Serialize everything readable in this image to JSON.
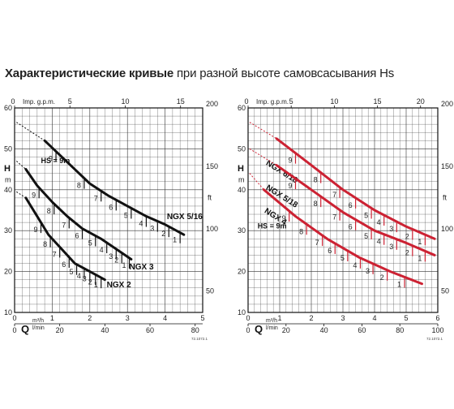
{
  "title": {
    "bold": "Характеристические кривые",
    "rest": " при разной высоте самовсасывания Hs"
  },
  "colors": {
    "left_curves": "#111111",
    "right_curves": "#cc2233",
    "grid": "#222222"
  },
  "chart_data": [
    {
      "type": "line",
      "id": "left",
      "curve_color": "#111111",
      "top_axis_label": "Imp. g.p.m.",
      "top_ticks": [
        "0",
        "5",
        "10",
        "15"
      ],
      "top_range": [
        0,
        17
      ],
      "right_unit": "ft",
      "right_ticks": [
        "200",
        "150",
        "100",
        "50"
      ],
      "left_axis_label": "H",
      "left_axis_unit": "m",
      "left_ticks": [
        "60",
        "50",
        "40",
        "30",
        "20",
        "10"
      ],
      "ylim": [
        10,
        60
      ],
      "bottom_q_label": "Q",
      "q_unit_1": "m³/h",
      "q_unit_2": "l/min",
      "m3h_ticks": [
        "0",
        "1",
        "2",
        "3",
        "4",
        "5"
      ],
      "m3h_range": [
        0,
        5
      ],
      "lmin_ticks": [
        "0",
        "20",
        "40",
        "60",
        "80"
      ],
      "lmin_range": [
        0,
        83.333
      ],
      "code": "72.1072.1",
      "series": [
        {
          "name": "NGX 5/16",
          "label_at": [
            4.05,
            32.8
          ],
          "dashed": [
            [
              0.05,
              56.5
            ],
            [
              0.8,
              52
            ]
          ],
          "points": [
            [
              0.8,
              52
            ],
            [
              1.2,
              48.5
            ],
            [
              1.6,
              45
            ],
            [
              2.0,
              41.5
            ],
            [
              2.5,
              38.5
            ],
            [
              3.0,
              36
            ],
            [
              3.5,
              33.5
            ],
            [
              4.0,
              31.5
            ],
            [
              4.5,
              29
            ]
          ],
          "hs_marks": [
            {
              "label": "9",
              "q": 1.1,
              "len": 6
            },
            {
              "label": "8",
              "q": 1.85,
              "len": 6
            },
            {
              "label": "7",
              "q": 2.3,
              "len": 6
            },
            {
              "label": "6",
              "q": 2.7,
              "len": 6
            },
            {
              "label": "5",
              "q": 3.1,
              "len": 6
            },
            {
              "label": "4",
              "q": 3.5,
              "len": 6
            },
            {
              "label": "3",
              "q": 3.8,
              "len": 6
            },
            {
              "label": "2",
              "q": 4.1,
              "len": 6
            },
            {
              "label": "1",
              "q": 4.4,
              "len": 6
            }
          ],
          "hs_label": "HS = 9m",
          "hs_label_at": [
            0.7,
            46.5
          ]
        },
        {
          "name": "NGX 3",
          "label_at": [
            3.05,
            20.5
          ],
          "dashed": [
            [
              0.05,
              47
            ],
            [
              0.3,
              45
            ]
          ],
          "points": [
            [
              0.3,
              45
            ],
            [
              0.6,
              41
            ],
            [
              1.0,
              37
            ],
            [
              1.4,
              33.5
            ],
            [
              1.8,
              30.5
            ],
            [
              2.3,
              28
            ],
            [
              2.7,
              25.5
            ],
            [
              3.1,
              23
            ]
          ],
          "hs_marks": [
            {
              "label": "9",
              "q": 0.65,
              "len": 6
            },
            {
              "label": "8",
              "q": 1.05,
              "len": 6
            },
            {
              "label": "7",
              "q": 1.45,
              "len": 6
            },
            {
              "label": "6",
              "q": 1.8,
              "len": 6
            },
            {
              "label": "5",
              "q": 2.15,
              "len": 6
            },
            {
              "label": "4",
              "q": 2.45,
              "len": 6
            },
            {
              "label": "3",
              "q": 2.7,
              "len": 6
            },
            {
              "label": "2",
              "q": 2.85,
              "len": 6
            },
            {
              "label": "1",
              "q": 3.05,
              "len": 6
            }
          ]
        },
        {
          "name": "NGX 2",
          "label_at": [
            2.45,
            16.2
          ],
          "dashed": [
            [
              0.05,
              39.5
            ],
            [
              0.3,
              38
            ]
          ],
          "points": [
            [
              0.3,
              38
            ],
            [
              0.6,
              33.5
            ],
            [
              0.9,
              29
            ],
            [
              1.3,
              25
            ],
            [
              1.6,
              22
            ],
            [
              2.0,
              20
            ],
            [
              2.4,
              18
            ]
          ],
          "hs_marks": [
            {
              "label": "9",
              "q": 0.7,
              "len": 6
            },
            {
              "label": "8",
              "q": 0.95,
              "len": 6
            },
            {
              "label": "7",
              "q": 1.2,
              "len": 6
            },
            {
              "label": "6",
              "q": 1.45,
              "len": 6
            },
            {
              "label": "5",
              "q": 1.65,
              "len": 6
            },
            {
              "label": "4",
              "q": 1.85,
              "len": 6
            },
            {
              "label": "3",
              "q": 2.0,
              "len": 6
            },
            {
              "label": "2",
              "q": 2.15,
              "len": 6
            },
            {
              "label": "1",
              "q": 2.3,
              "len": 6
            }
          ]
        }
      ]
    },
    {
      "type": "line",
      "id": "right",
      "curve_color": "#cc2233",
      "top_axis_label": "Imp. g.p.m.",
      "top_ticks": [
        "0",
        "5",
        "10",
        "15",
        "20"
      ],
      "top_range": [
        0,
        22
      ],
      "right_unit": "ft",
      "right_ticks": [
        "200",
        "150",
        "100",
        "50"
      ],
      "left_axis_label": "H",
      "left_axis_unit": "m",
      "left_ticks": [
        "60",
        "50",
        "40",
        "30",
        "20",
        "10"
      ],
      "ylim": [
        10,
        60
      ],
      "bottom_q_label": "Q",
      "q_unit_1": "m³/h",
      "q_unit_2": "l/min",
      "m3h_ticks": [
        "0",
        "1",
        "2",
        "3",
        "4",
        "5",
        "6"
      ],
      "m3h_range": [
        0,
        6
      ],
      "lmin_ticks": [
        "0",
        "20",
        "40",
        "60",
        "80",
        "100"
      ],
      "lmin_range": [
        0,
        100
      ],
      "code": "72.1072.1",
      "series": [
        {
          "name": "NGX 6/18",
          "label_at": [
            0.55,
            46.2
          ],
          "dashed": [
            [
              0.05,
              56.5
            ],
            [
              0.9,
              52.5
            ]
          ],
          "points": [
            [
              0.9,
              52.5
            ],
            [
              2.0,
              46
            ],
            [
              3.0,
              40
            ],
            [
              4.0,
              35
            ],
            [
              5.0,
              31
            ],
            [
              5.9,
              28
            ]
          ],
          "hs_marks": [
            {
              "label": "9",
              "q": 1.5,
              "len": 6
            },
            {
              "label": "8",
              "q": 2.3,
              "len": 6
            },
            {
              "label": "7",
              "q": 2.9,
              "len": 6
            },
            {
              "label": "6",
              "q": 3.4,
              "len": 6
            },
            {
              "label": "5",
              "q": 3.9,
              "len": 6
            },
            {
              "label": "4",
              "q": 4.3,
              "len": 6
            },
            {
              "label": "3",
              "q": 4.7,
              "len": 6
            },
            {
              "label": "2",
              "q": 5.2,
              "len": 6
            },
            {
              "label": "1",
              "q": 5.6,
              "len": 6
            }
          ]
        },
        {
          "name": "NGX 5/18",
          "label_at": [
            0.55,
            40.2
          ],
          "dashed": [
            [
              0.05,
              50
            ],
            [
              0.9,
              46
            ]
          ],
          "points": [
            [
              0.9,
              46
            ],
            [
              2.0,
              40
            ],
            [
              3.0,
              34.5
            ],
            [
              4.0,
              30
            ],
            [
              5.0,
              27
            ],
            [
              5.9,
              24
            ]
          ],
          "hs_marks": [
            {
              "label": "9",
              "q": 1.5,
              "len": 6
            },
            {
              "label": "8",
              "q": 2.3,
              "len": 6
            },
            {
              "label": "7",
              "q": 2.9,
              "len": 6
            },
            {
              "label": "6",
              "q": 3.4,
              "len": 6
            },
            {
              "label": "5",
              "q": 3.9,
              "len": 6
            },
            {
              "label": "4",
              "q": 4.3,
              "len": 6
            },
            {
              "label": "3",
              "q": 4.7,
              "len": 6
            },
            {
              "label": "2",
              "q": 5.2,
              "len": 6
            },
            {
              "label": "1",
              "q": 5.6,
              "len": 6
            }
          ]
        },
        {
          "name": "NGX 4",
          "label_at": [
            0.5,
            34.5
          ],
          "dashed": [
            [
              0.05,
              44
            ],
            [
              0.5,
              40
            ]
          ],
          "points": [
            [
              0.5,
              40
            ],
            [
              1.5,
              33.5
            ],
            [
              2.5,
              28
            ],
            [
              3.5,
              23.5
            ],
            [
              4.5,
              20
            ],
            [
              5.5,
              17
            ]
          ],
          "hs_marks": [
            {
              "label": "9",
              "q": 1.3,
              "len": 6
            },
            {
              "label": "8",
              "q": 1.85,
              "len": 6
            },
            {
              "label": "7",
              "q": 2.35,
              "len": 6
            },
            {
              "label": "6",
              "q": 2.75,
              "len": 6
            },
            {
              "label": "5",
              "q": 3.15,
              "len": 6
            },
            {
              "label": "4",
              "q": 3.55,
              "len": 6
            },
            {
              "label": "3",
              "q": 3.95,
              "len": 6
            },
            {
              "label": "2",
              "q": 4.4,
              "len": 6
            },
            {
              "label": "1",
              "q": 4.95,
              "len": 6
            }
          ],
          "hs_label": "HS = 9m",
          "hs_label_at": [
            0.3,
            30.5
          ]
        }
      ]
    }
  ]
}
